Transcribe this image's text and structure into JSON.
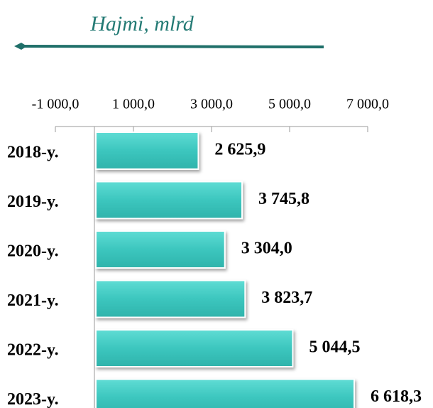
{
  "chart_data": {
    "type": "barh",
    "title": "Hajmi, mlrd",
    "categories": [
      "2018-y.",
      "2019-y.",
      "2020-y.",
      "2021-y.",
      "2022-y.",
      "2023-y."
    ],
    "values": [
      2625.9,
      3745.8,
      3304.0,
      3823.7,
      5044.5,
      6618.3
    ],
    "value_labels": [
      "2 625,9",
      "3 745,8",
      "3 304,0",
      "3 823,7",
      "5 044,5",
      "6 618,3"
    ],
    "color": "#3cc6be",
    "xlim": [
      -1000,
      7000
    ],
    "xticks": [
      {
        "value": -1000,
        "label": "-1 000,0"
      },
      {
        "value": 1000,
        "label": "1 000,0"
      },
      {
        "value": 3000,
        "label": "3 000,0"
      },
      {
        "value": 5000,
        "label": "5 000,0"
      },
      {
        "value": 7000,
        "label": "7 000,0"
      }
    ]
  }
}
